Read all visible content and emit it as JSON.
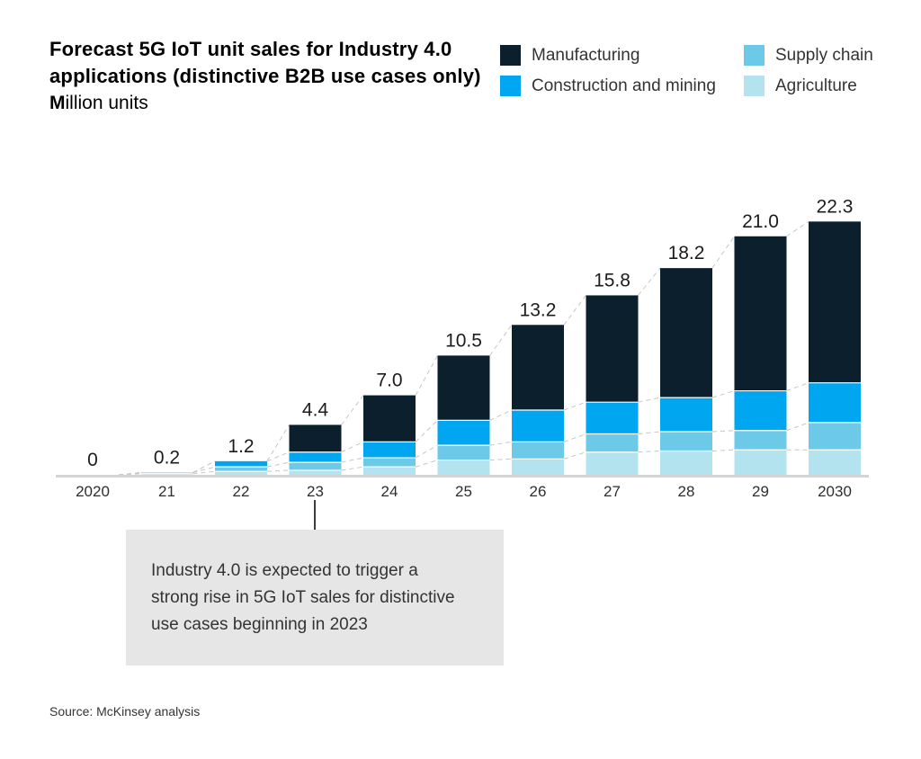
{
  "header": {
    "title_line1": "Forecast 5G IoT unit sales for Industry 4.0",
    "title_line2": "applications (distinctive B2B use cases only)",
    "subtitle_bold": "M",
    "subtitle_rest": "illion units"
  },
  "legend": {
    "items": [
      {
        "label": "Manufacturing",
        "color": "#0c1f2c"
      },
      {
        "label": "Construction and mining",
        "color": "#00a6ef"
      },
      {
        "label": "Supply chain",
        "color": "#6dc9e8"
      },
      {
        "label": "Agriculture",
        "color": "#b3e3ef"
      }
    ]
  },
  "chart_data": {
    "type": "bar",
    "stacked": true,
    "title": "Forecast 5G IoT unit sales for Industry 4.0 applications (distinctive B2B use cases only)",
    "unit": "Million units",
    "categories": [
      "2020",
      "21",
      "22",
      "23",
      "24",
      "25",
      "26",
      "27",
      "28",
      "29",
      "2030"
    ],
    "series": [
      {
        "name": "Agriculture",
        "color": "#b3e3ef",
        "values": [
          0,
          0.1,
          0.3,
          0.4,
          0.7,
          1.3,
          1.4,
          2.0,
          2.1,
          2.2,
          2.2
        ]
      },
      {
        "name": "Supply chain",
        "color": "#6dc9e8",
        "values": [
          0,
          0.1,
          0.4,
          0.7,
          0.8,
          1.3,
          1.5,
          1.6,
          1.7,
          1.7,
          2.4
        ]
      },
      {
        "name": "Construction and mining",
        "color": "#00a6ef",
        "values": [
          0,
          0,
          0.5,
          0.9,
          1.4,
          2.2,
          2.8,
          2.8,
          3.0,
          3.5,
          3.5
        ]
      },
      {
        "name": "Manufacturing",
        "color": "#0c1f2c",
        "values": [
          0,
          0,
          0,
          2.4,
          4.1,
          5.7,
          7.5,
          9.4,
          11.4,
          13.6,
          14.2
        ]
      }
    ],
    "totals": [
      0,
      0.2,
      1.2,
      4.4,
      7.0,
      10.5,
      13.2,
      15.8,
      18.2,
      21.0,
      22.3
    ],
    "total_labels": [
      "0",
      "0.2",
      "1.2",
      "4.4",
      "7.0",
      "10.5",
      "13.2",
      "15.8",
      "18.2",
      "21.0",
      "22.3"
    ],
    "ylim": [
      0,
      24
    ],
    "gridlines": false,
    "legend_position": "top-right",
    "connector_style": "dashed lines linking segment boundaries of adjacent bars"
  },
  "annotation": {
    "lines": [
      "Industry 4.0 is expected to trigger a",
      "strong rise in 5G IoT sales for distinctive",
      "use cases beginning in 2023"
    ],
    "points_to_category": "23"
  },
  "source": "Source: McKinsey analysis"
}
